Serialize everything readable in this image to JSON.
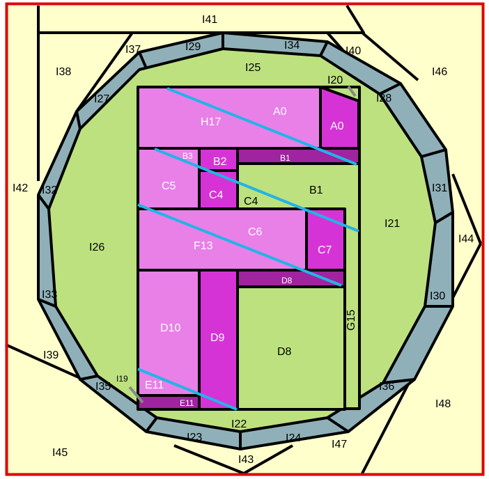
{
  "colors": {
    "outer": "#ffffcc",
    "ring": "#8fb0b8",
    "green": "#bde17e",
    "pink": "#e880e8",
    "magenta": "#d633d6",
    "purple": "#a023a0",
    "blue_line": "#22b4e6",
    "grey_line": "#888888",
    "frame": "#e00000"
  },
  "outer_pieces": [
    "I41",
    "I37",
    "I38",
    "I40",
    "I46",
    "I42",
    "I44",
    "I39",
    "I45",
    "I48",
    "I43",
    "I47"
  ],
  "ring_pieces": [
    "I29",
    "I34",
    "I27",
    "I28",
    "I32",
    "I31",
    "I33",
    "I30",
    "I35",
    "I36",
    "I23",
    "I24"
  ],
  "green_pieces": [
    "I25",
    "I26",
    "I21",
    "I22",
    "B1",
    "D8",
    "C4",
    "G15"
  ],
  "pink_pieces": [
    "H17",
    "A0",
    "C5",
    "C6",
    "F13",
    "D10",
    "E11"
  ],
  "magenta_pieces": [
    "A0",
    "B2",
    "C4",
    "C7",
    "D9"
  ],
  "purple_pieces": [
    "B1",
    "D8",
    "E11"
  ],
  "small_labels": [
    "I20",
    "B3",
    "I19"
  ]
}
